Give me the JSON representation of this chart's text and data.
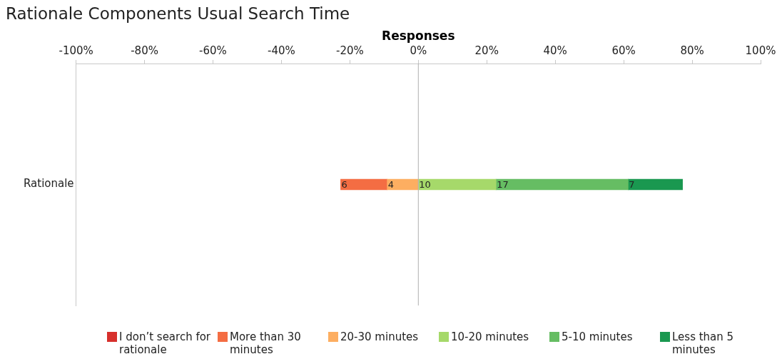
{
  "chart_data": {
    "type": "bar",
    "orientation": "horizontal",
    "stacked": true,
    "title": "Rationale Components Usual Search Time",
    "xlabel": "Responses",
    "categories": [
      "Rationale"
    ],
    "xlim": [
      -100,
      100
    ],
    "xticks": [
      {
        "value": -100,
        "label": "-100%"
      },
      {
        "value": -80,
        "label": "-80%"
      },
      {
        "value": -60,
        "label": "-60%"
      },
      {
        "value": -40,
        "label": "-40%"
      },
      {
        "value": -20,
        "label": "-20%"
      },
      {
        "value": 0,
        "label": "0%"
      },
      {
        "value": 20,
        "label": "20%"
      },
      {
        "value": 40,
        "label": "40%"
      },
      {
        "value": 60,
        "label": "60%"
      },
      {
        "value": 80,
        "label": "80%"
      },
      {
        "value": 100,
        "label": "100%"
      }
    ],
    "grid": false,
    "legend": "bottom",
    "annotations": [
      {
        "text": "6",
        "x": -22.7,
        "y": "Rationale"
      },
      {
        "text": "4",
        "x": -9.1,
        "y": "Rationale"
      },
      {
        "text": "10",
        "x": 0,
        "y": "Rationale"
      },
      {
        "text": "17",
        "x": 22.7,
        "y": "Rationale"
      },
      {
        "text": "7",
        "x": 61.3,
        "y": "Rationale"
      }
    ],
    "ref_lines": [
      {
        "axis": "x",
        "value": 0,
        "color": "#b0b0b0"
      }
    ],
    "series": [
      {
        "name": "I don’t search for rationale",
        "color": "#d7302c",
        "values": [
          null
        ]
      },
      {
        "name": "More than 30 minutes",
        "color": "#f46d43",
        "values": [
          -13.6
        ]
      },
      {
        "name": "20-30 minutes",
        "color": "#fdae61",
        "values": [
          -9.1
        ]
      },
      {
        "name": "10-20 minutes",
        "color": "#a6d96a",
        "values": [
          22.7
        ]
      },
      {
        "name": "5-10 minutes",
        "color": "#66bd63",
        "values": [
          38.6
        ]
      },
      {
        "name": "Less than 5 minutes",
        "color": "#1a9850",
        "values": [
          15.9
        ]
      }
    ]
  }
}
